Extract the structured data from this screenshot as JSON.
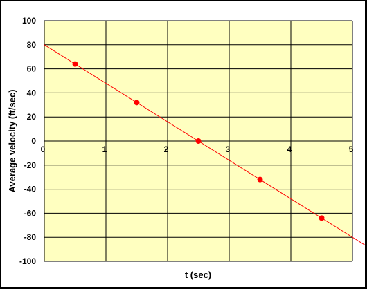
{
  "chart_data": {
    "type": "scatter",
    "xlabel": "t (sec)",
    "ylabel": "Average velocity (ft/sec)",
    "xlim": [
      0,
      5
    ],
    "ylim": [
      -100,
      100
    ],
    "x_ticks": [
      0,
      1,
      2,
      3,
      4,
      5
    ],
    "y_ticks": [
      100,
      80,
      60,
      40,
      20,
      0,
      -20,
      -40,
      -60,
      -80,
      -100
    ],
    "grid": true,
    "colors": {
      "plot_background": "#ffffc0",
      "page_background": "#ffffff",
      "points": "#ff0000",
      "trendline": "#ff0000",
      "grid": "#000000"
    },
    "series": [
      {
        "x": [
          0.5,
          1.5,
          2.5,
          3.5,
          4.5
        ],
        "y": [
          64,
          32,
          0,
          -32,
          -64
        ]
      }
    ],
    "trendline": {
      "x": [
        0,
        5.2
      ],
      "y": [
        80,
        -86.4
      ]
    }
  }
}
